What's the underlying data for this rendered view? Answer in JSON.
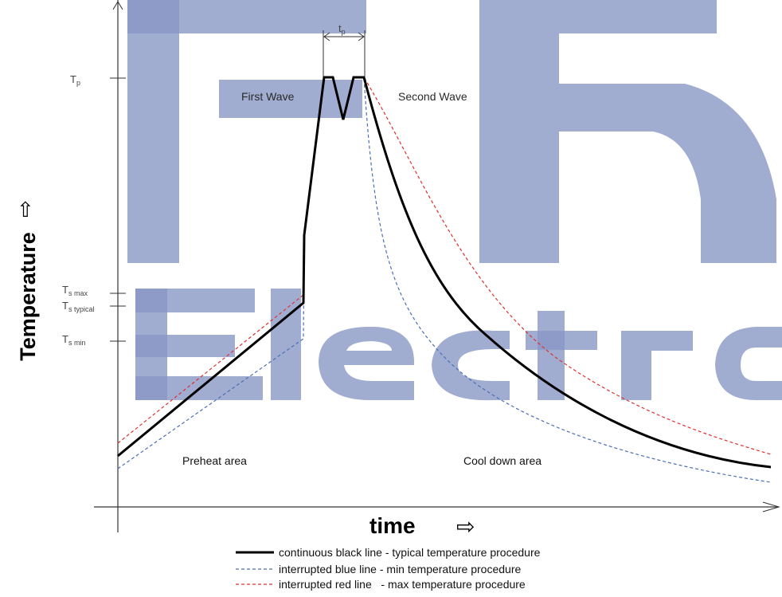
{
  "watermark": {
    "text_top": "FR",
    "text_bottom": "Electro",
    "color": "#8a97c6"
  },
  "axes": {
    "y_label": "Temperature",
    "y_arrow": "⇨",
    "x_label": "time",
    "x_arrow": "⇨"
  },
  "y_ticks": {
    "tp": {
      "main": "T",
      "sub": "p"
    },
    "ts_max": {
      "main": "T",
      "sub": "s max"
    },
    "ts_typical": {
      "main": "T",
      "sub": "s typical"
    },
    "ts_min": {
      "main": "T",
      "sub": "s min"
    }
  },
  "dimension": {
    "main": "t",
    "sub": "p"
  },
  "annotations": {
    "first_wave": "First Wave",
    "second_wave": "Second Wave",
    "preheat": "Preheat area",
    "cooldown": "Cool down area"
  },
  "legend": [
    {
      "style": "solid",
      "color": "#000000",
      "text": "continuous black line - typical temperature procedure"
    },
    {
      "style": "dashed",
      "color": "#4a6fb5",
      "text": "interrupted blue line - min temperature procedure"
    },
    {
      "style": "dashed",
      "color": "#e03030",
      "text": "interrupted red line   - max temperature procedure"
    }
  ],
  "colors": {
    "typical": "#000000",
    "min": "#4a6fb5",
    "max": "#e03030",
    "axis": "#333333"
  }
}
